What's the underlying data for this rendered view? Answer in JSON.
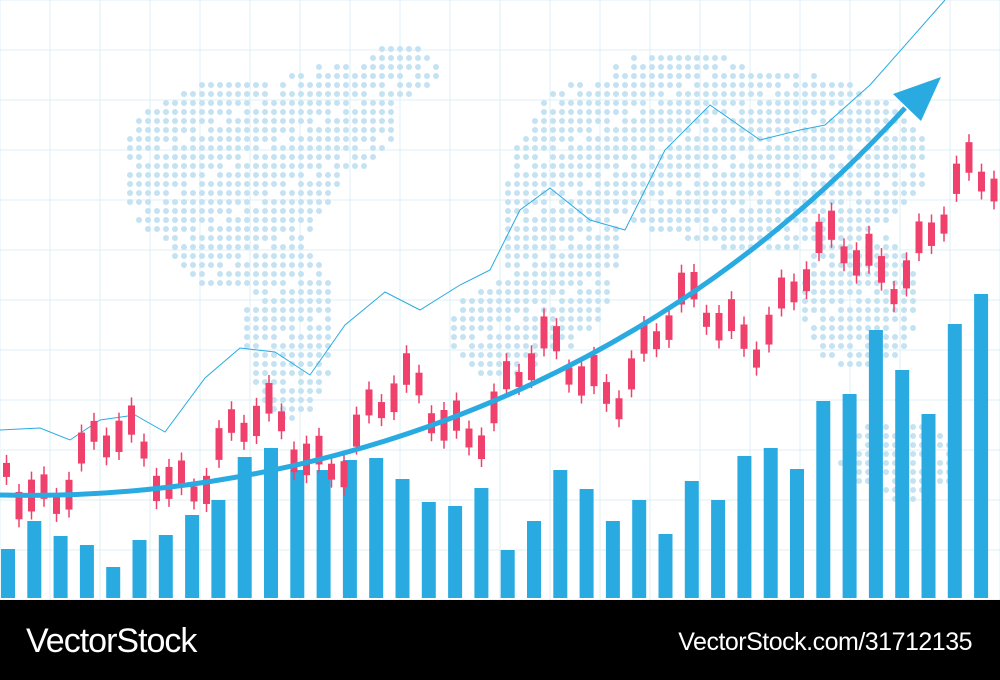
{
  "watermark": {
    "brand": "VectorStock",
    "url": "VectorStock.com/31712135"
  }
}
